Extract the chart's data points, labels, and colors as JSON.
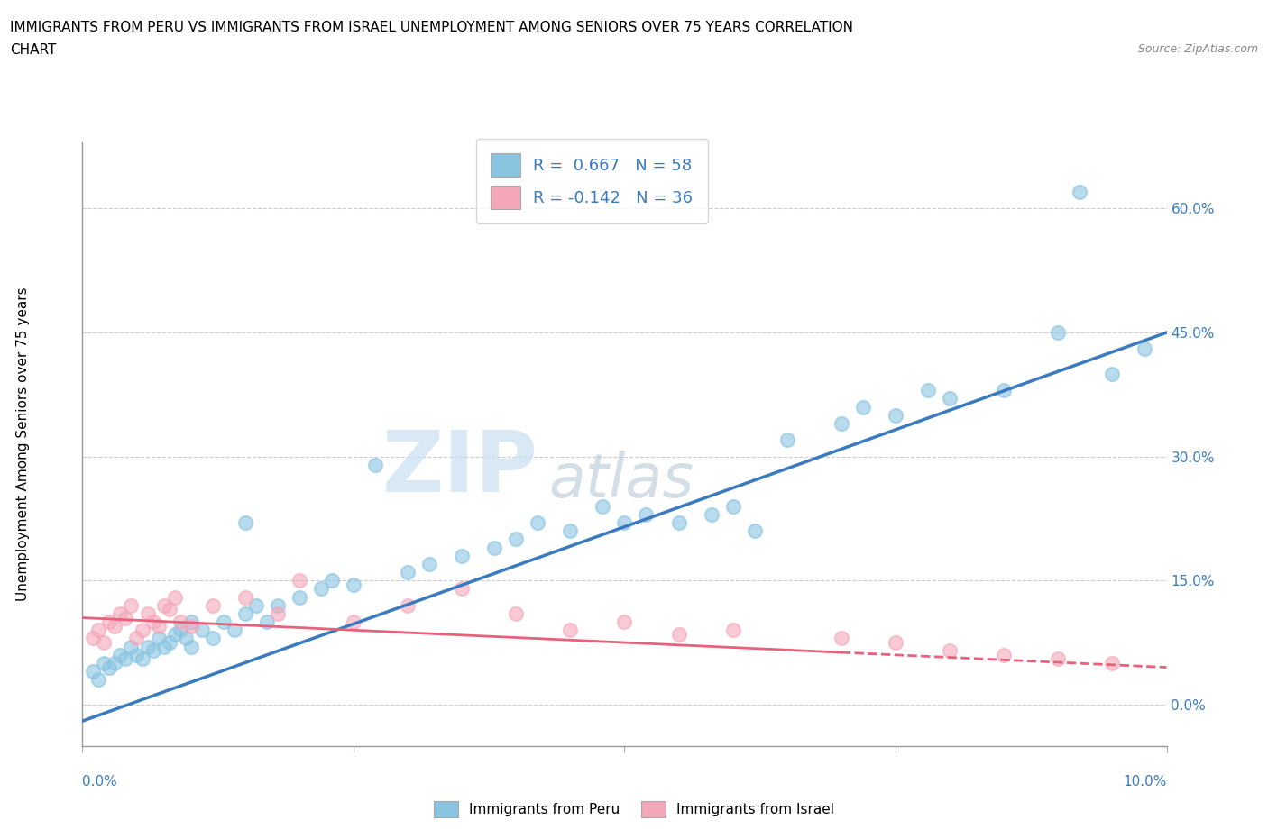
{
  "title_line1": "IMMIGRANTS FROM PERU VS IMMIGRANTS FROM ISRAEL UNEMPLOYMENT AMONG SENIORS OVER 75 YEARS CORRELATION",
  "title_line2": "CHART",
  "source": "Source: ZipAtlas.com",
  "ylabel": "Unemployment Among Seniors over 75 years",
  "ytick_vals": [
    0.0,
    15.0,
    30.0,
    45.0,
    60.0
  ],
  "xrange": [
    0.0,
    10.0
  ],
  "yrange": [
    -5.0,
    68.0
  ],
  "r_peru": 0.667,
  "n_peru": 58,
  "r_israel": -0.142,
  "n_israel": 36,
  "color_peru": "#89c4e1",
  "color_israel": "#f4a7b9",
  "trendline_peru_color": "#3a7bbf",
  "trendline_israel_color": "#e8607a",
  "watermark_zip": "ZIP",
  "watermark_atlas": "atlas",
  "peru_x": [
    0.1,
    0.15,
    0.2,
    0.25,
    0.3,
    0.35,
    0.4,
    0.45,
    0.5,
    0.55,
    0.6,
    0.65,
    0.7,
    0.75,
    0.8,
    0.85,
    0.9,
    0.95,
    1.0,
    1.0,
    1.1,
    1.2,
    1.3,
    1.4,
    1.5,
    1.6,
    1.7,
    1.8,
    2.0,
    2.2,
    2.5,
    2.7,
    3.0,
    3.2,
    3.5,
    3.8,
    4.0,
    4.2,
    4.5,
    4.8,
    5.0,
    5.2,
    5.5,
    5.8,
    6.0,
    6.2,
    6.5,
    7.0,
    7.2,
    7.5,
    7.8,
    8.0,
    8.5,
    9.0,
    9.5,
    9.8,
    1.5,
    2.3
  ],
  "peru_y": [
    4.0,
    3.0,
    5.0,
    4.5,
    5.0,
    6.0,
    5.5,
    7.0,
    6.0,
    5.5,
    7.0,
    6.5,
    8.0,
    7.0,
    7.5,
    8.5,
    9.0,
    8.0,
    10.0,
    7.0,
    9.0,
    8.0,
    10.0,
    9.0,
    11.0,
    12.0,
    10.0,
    12.0,
    13.0,
    14.0,
    14.5,
    29.0,
    16.0,
    17.0,
    18.0,
    19.0,
    20.0,
    22.0,
    21.0,
    24.0,
    22.0,
    23.0,
    22.0,
    23.0,
    24.0,
    21.0,
    32.0,
    34.0,
    36.0,
    35.0,
    38.0,
    37.0,
    38.0,
    45.0,
    40.0,
    43.0,
    22.0,
    15.0
  ],
  "israel_x": [
    0.1,
    0.15,
    0.2,
    0.25,
    0.3,
    0.35,
    0.4,
    0.45,
    0.5,
    0.55,
    0.6,
    0.65,
    0.7,
    0.75,
    0.8,
    0.85,
    0.9,
    1.0,
    1.2,
    1.5,
    1.8,
    2.0,
    2.5,
    3.0,
    3.5,
    4.0,
    4.5,
    5.0,
    5.5,
    6.0,
    7.0,
    7.5,
    8.0,
    8.5,
    9.0,
    9.5
  ],
  "israel_y": [
    8.0,
    9.0,
    7.5,
    10.0,
    9.5,
    11.0,
    10.5,
    12.0,
    8.0,
    9.0,
    11.0,
    10.0,
    9.5,
    12.0,
    11.5,
    13.0,
    10.0,
    9.5,
    12.0,
    13.0,
    11.0,
    15.0,
    10.0,
    12.0,
    14.0,
    11.0,
    9.0,
    10.0,
    8.5,
    9.0,
    8.0,
    7.5,
    6.5,
    6.0,
    5.5,
    5.0
  ],
  "peru_trend_x0": 0.0,
  "peru_trend_y0": -2.0,
  "peru_trend_x1": 10.0,
  "peru_trend_y1": 45.0,
  "israel_trend_x0": 0.0,
  "israel_trend_y0": 10.5,
  "israel_trend_x1": 10.0,
  "israel_trend_y1": 4.5
}
